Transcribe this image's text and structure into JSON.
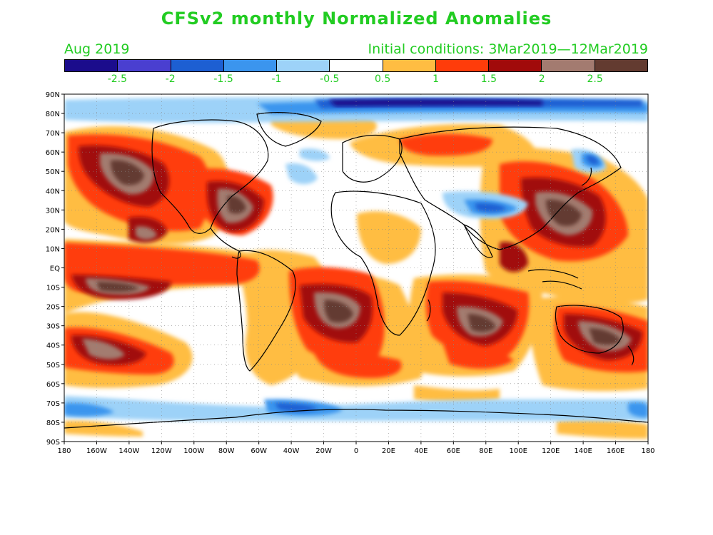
{
  "title": "CFSv2 monthly Normalized Anomalies",
  "valid_month": "Aug 2019",
  "initial_conditions": "Initial conditions: 3Mar2019—12Mar2019",
  "colorbar": {
    "colors": [
      "#1b0c8c",
      "#4a3fd0",
      "#1d5fd2",
      "#3b95ee",
      "#9dd2f8",
      "#ffffff",
      "#ffbd42",
      "#ff3c0a",
      "#a10a0a",
      "#a37b70",
      "#633b30"
    ],
    "labels": [
      "-2.5",
      "-2",
      "-1.5",
      "-1",
      "-0.5",
      "0.5",
      "1",
      "1.5",
      "2",
      "2.5"
    ]
  },
  "map": {
    "lat_labels": [
      "90N",
      "80N",
      "70N",
      "60N",
      "50N",
      "40N",
      "30N",
      "20N",
      "10N",
      "EQ",
      "10S",
      "20S",
      "30S",
      "40S",
      "50S",
      "60S",
      "70S",
      "80S",
      "90S"
    ],
    "lon_labels": [
      "180",
      "160W",
      "140W",
      "120W",
      "100W",
      "80W",
      "60W",
      "40W",
      "20W",
      "0",
      "20E",
      "40E",
      "60E",
      "80E",
      "100E",
      "120E",
      "140E",
      "160E",
      "180"
    ],
    "anomaly_regions": [
      {
        "name": "north-pacific",
        "level": 2.5,
        "lon": -165,
        "lat": 45
      },
      {
        "name": "gulf-of-mexico",
        "level": 2.5,
        "lon": -70,
        "lat": 32
      },
      {
        "name": "equatorial-pacific",
        "level": 2.5,
        "lon": -150,
        "lat": -8
      },
      {
        "name": "south-atlantic",
        "level": 2.5,
        "lon": -5,
        "lat": -22
      },
      {
        "name": "indian-ocean",
        "level": 2.5,
        "lon": 85,
        "lat": -25
      },
      {
        "name": "western-pacific",
        "level": 2.5,
        "lon": 140,
        "lat": 25
      },
      {
        "name": "southwest-pacific",
        "level": 2.5,
        "lon": 170,
        "lat": -35
      },
      {
        "name": "arctic-ocean",
        "level": -1.5,
        "lon": -20,
        "lat": 85
      },
      {
        "name": "tibetan-plateau",
        "level": -1.5,
        "lon": 85,
        "lat": 33
      },
      {
        "name": "east-siberia",
        "level": -2,
        "lon": 140,
        "lat": 55
      },
      {
        "name": "southern-ocean",
        "level": -1.5,
        "lon": -40,
        "lat": -70
      }
    ]
  }
}
